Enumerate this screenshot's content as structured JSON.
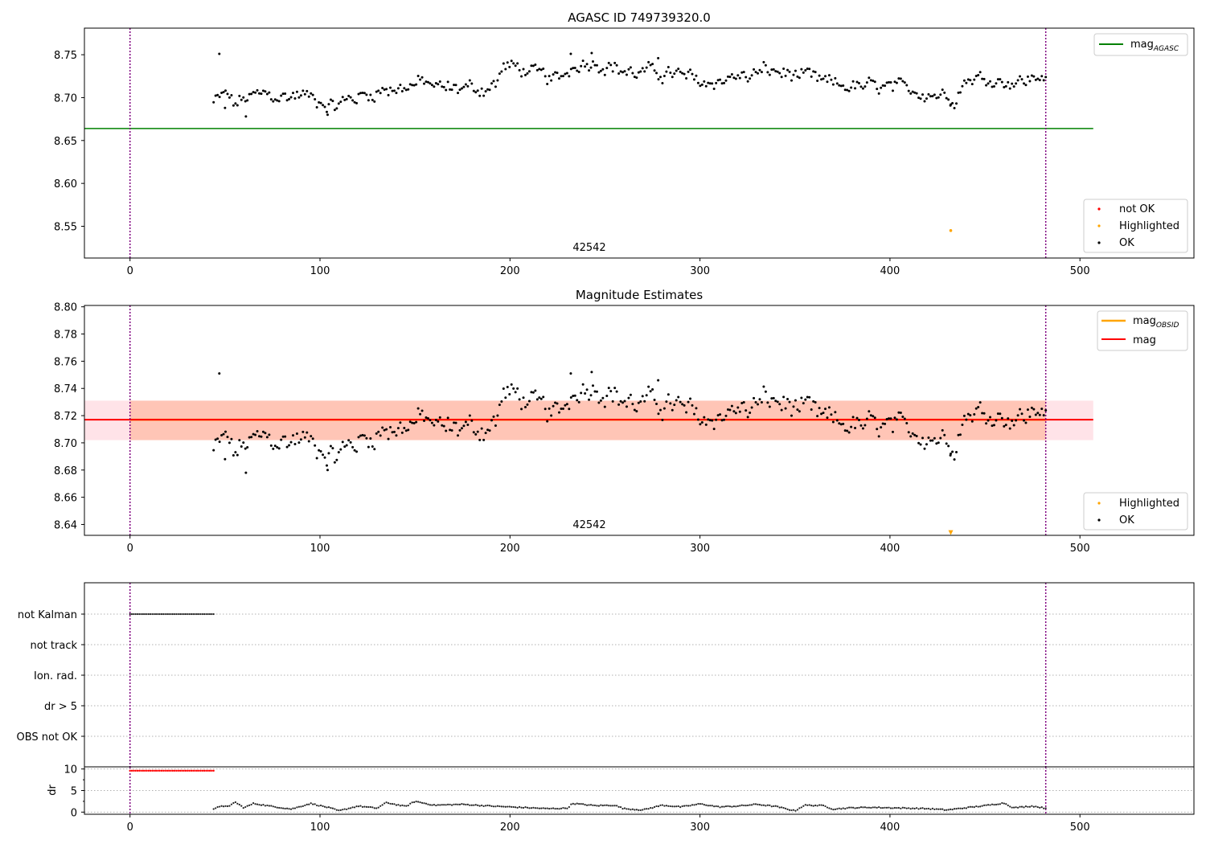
{
  "colors": {
    "ok": "#000000",
    "not_ok": "#ff0000",
    "highlighted": "#ffa500",
    "mag_agasc": "#008000",
    "mag": "#ff0000",
    "mag_obsid": "#ffa500",
    "vline": "#800080",
    "band_outer": "#ffc0cb",
    "band_inner": "#ffa07a"
  },
  "chart_data": [
    {
      "type": "scatter",
      "title": "AGASC ID 749739320.0",
      "xlim": [
        -24,
        560
      ],
      "ylim": [
        8.513,
        8.781
      ],
      "xticks": [
        0,
        100,
        200,
        300,
        400,
        500
      ],
      "yticks": [
        8.55,
        8.6,
        8.65,
        8.7,
        8.75
      ],
      "ytick_labels": [
        "8.55",
        "8.60",
        "8.65",
        "8.70",
        "8.75"
      ],
      "obsid_label": "42542",
      "obsid_label_x": 240,
      "vlines": [
        0,
        482
      ],
      "hlines": [
        {
          "name": "mag_AGASC",
          "y": 8.664,
          "xmin": -24,
          "xmax": 507
        }
      ],
      "highlighted_points": [
        [
          432,
          8.545
        ]
      ],
      "legend_top": {
        "position": "upper right",
        "entries": [
          {
            "label": "mag",
            "sub": "AGASC"
          }
        ]
      },
      "legend_bottom": {
        "position": "lower right",
        "entries": [
          "not OK",
          "Highlighted",
          "OK"
        ]
      },
      "ok_series": {
        "x_start": 44,
        "x_end": 482,
        "n": 420,
        "anchors": [
          [
            44,
            8.694
          ],
          [
            50,
            8.705
          ],
          [
            55,
            8.692
          ],
          [
            60,
            8.698
          ],
          [
            70,
            8.704
          ],
          [
            80,
            8.7
          ],
          [
            90,
            8.704
          ],
          [
            100,
            8.697
          ],
          [
            108,
            8.69
          ],
          [
            115,
            8.698
          ],
          [
            125,
            8.704
          ],
          [
            135,
            8.71
          ],
          [
            145,
            8.712
          ],
          [
            155,
            8.718
          ],
          [
            165,
            8.71
          ],
          [
            175,
            8.712
          ],
          [
            185,
            8.71
          ],
          [
            193,
            8.716
          ],
          [
            197,
            8.738
          ],
          [
            205,
            8.734
          ],
          [
            215,
            8.726
          ],
          [
            225,
            8.72
          ],
          [
            235,
            8.74
          ],
          [
            245,
            8.742
          ],
          [
            255,
            8.735
          ],
          [
            265,
            8.728
          ],
          [
            275,
            8.73
          ],
          [
            285,
            8.728
          ],
          [
            295,
            8.722
          ],
          [
            305,
            8.716
          ],
          [
            315,
            8.724
          ],
          [
            325,
            8.724
          ],
          [
            335,
            8.732
          ],
          [
            345,
            8.728
          ],
          [
            355,
            8.724
          ],
          [
            365,
            8.718
          ],
          [
            375,
            8.714
          ],
          [
            385,
            8.712
          ],
          [
            395,
            8.712
          ],
          [
            405,
            8.71
          ],
          [
            415,
            8.708
          ],
          [
            425,
            8.704
          ],
          [
            435,
            8.702
          ],
          [
            440,
            8.722
          ],
          [
            450,
            8.722
          ],
          [
            460,
            8.72
          ],
          [
            470,
            8.718
          ],
          [
            482,
            8.728
          ]
        ],
        "scatter": 0.009,
        "outliers": [
          [
            47,
            8.751
          ],
          [
            61,
            8.678
          ],
          [
            104,
            8.68
          ],
          [
            232,
            8.751
          ],
          [
            243,
            8.752
          ],
          [
            278,
            8.746
          ],
          [
            50,
            8.688
          ],
          [
            432,
            8.692
          ]
        ]
      }
    },
    {
      "type": "scatter",
      "title": "Magnitude Estimates",
      "xlim": [
        -24,
        560
      ],
      "ylim": [
        8.632,
        8.801
      ],
      "xticks": [
        0,
        100,
        200,
        300,
        400,
        500
      ],
      "yticks": [
        8.64,
        8.66,
        8.68,
        8.7,
        8.72,
        8.74,
        8.76,
        8.78,
        8.8
      ],
      "ytick_labels": [
        "8.64",
        "8.66",
        "8.68",
        "8.70",
        "8.72",
        "8.74",
        "8.76",
        "8.78",
        "8.80"
      ],
      "obsid_label": "42542",
      "obsid_label_x": 240,
      "vlines": [
        0,
        482
      ],
      "mag": {
        "y": 8.717,
        "band": [
          8.702,
          8.731
        ],
        "xmin": -24,
        "xmax": 507
      },
      "mag_obsid": {
        "y": 8.717,
        "band": [
          8.702,
          8.731
        ],
        "xmin": 0,
        "xmax": 482
      },
      "highlighted_points": [
        [
          432,
          8.634
        ]
      ],
      "legend_top": {
        "position": "upper right",
        "entries": [
          {
            "label": "mag",
            "sub": "OBSID"
          },
          {
            "label": "mag",
            "sub": ""
          }
        ]
      },
      "legend_bottom": {
        "position": "lower right",
        "entries": [
          "Highlighted",
          "OK"
        ]
      }
    },
    {
      "type": "scatter",
      "title": "",
      "xlim": [
        -24,
        560
      ],
      "categories": [
        "not Kalman",
        "not track",
        "Ion. rad.",
        "dr > 5",
        "OBS not OK"
      ],
      "vlines": [
        0,
        482
      ],
      "flag_points": {
        "category": "not Kalman",
        "x_start": 0,
        "x_end": 44,
        "n": 46
      }
    },
    {
      "type": "scatter",
      "title": "",
      "ylabel": "dr",
      "xlim": [
        -24,
        560
      ],
      "ylim": [
        -0.5,
        10.5
      ],
      "xticks": [
        0,
        100,
        200,
        300,
        400,
        500
      ],
      "yticks": [
        0,
        5,
        10
      ],
      "vlines": [
        0,
        482
      ],
      "red_points": {
        "x_start": 0,
        "x_end": 44,
        "n": 46,
        "y": 9.6
      },
      "black_series": {
        "x_start": 44,
        "x_end": 482,
        "n": 420,
        "anchors": [
          [
            44,
            0.6
          ],
          [
            48,
            1.5
          ],
          [
            52,
            1.2
          ],
          [
            55,
            2.4
          ],
          [
            60,
            1.0
          ],
          [
            65,
            2.0
          ],
          [
            75,
            1.3
          ],
          [
            85,
            0.7
          ],
          [
            95,
            2.0
          ],
          [
            105,
            1.0
          ],
          [
            110,
            0.3
          ],
          [
            120,
            1.4
          ],
          [
            130,
            0.9
          ],
          [
            135,
            2.2
          ],
          [
            145,
            1.3
          ],
          [
            150,
            2.5
          ],
          [
            160,
            1.6
          ],
          [
            175,
            1.8
          ],
          [
            190,
            1.4
          ],
          [
            200,
            1.2
          ],
          [
            210,
            1.0
          ],
          [
            220,
            0.8
          ],
          [
            230,
            0.9
          ],
          [
            233,
            2.0
          ],
          [
            245,
            1.5
          ],
          [
            255,
            1.6
          ],
          [
            260,
            0.8
          ],
          [
            270,
            0.5
          ],
          [
            280,
            1.6
          ],
          [
            290,
            1.2
          ],
          [
            300,
            1.9
          ],
          [
            310,
            1.2
          ],
          [
            320,
            1.4
          ],
          [
            330,
            1.8
          ],
          [
            340,
            1.3
          ],
          [
            350,
            0.3
          ],
          [
            355,
            1.6
          ],
          [
            365,
            1.5
          ],
          [
            370,
            0.7
          ],
          [
            380,
            1.0
          ],
          [
            390,
            1.1
          ],
          [
            400,
            1.0
          ],
          [
            410,
            0.9
          ],
          [
            420,
            0.8
          ],
          [
            430,
            0.5
          ],
          [
            440,
            1.0
          ],
          [
            450,
            1.5
          ],
          [
            460,
            2.1
          ],
          [
            465,
            1.0
          ],
          [
            475,
            1.4
          ],
          [
            482,
            0.9
          ]
        ]
      }
    }
  ]
}
